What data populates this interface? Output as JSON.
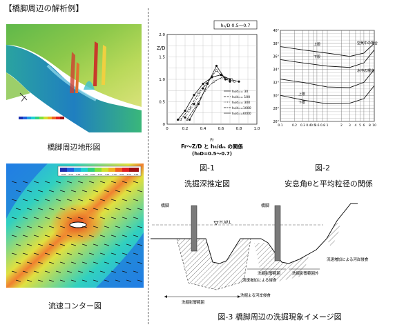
{
  "page_title": "【橋脚周辺の解析例】",
  "left": {
    "terrain_caption": "橋脚周辺地形図",
    "flow_caption": "流速コンター図",
    "flow_colorbar_ticks": [
      "0.00",
      "0.50",
      "1.00",
      "1.50",
      "2.00",
      "2.50",
      "3.00",
      "3.50",
      "4.00",
      "4.50",
      "5.00"
    ]
  },
  "fig1": {
    "label": "図-1",
    "caption": "洗掘深推定図",
    "legend_title": "h₀/D  0.5～0.7",
    "ylabel": "Z/D",
    "xlabel": "Fr",
    "chart_caption": "Fr～Z/D と h₀/dₘ の関係",
    "chart_caption2": "(h₀D=0.5～0.7)",
    "series_names": [
      "h₀/dₘ= 30",
      "h₀/dₘ= 100",
      "h₀/dₘ= 300",
      "h₀/dₘ=1000",
      "h₀/dₘ=6000"
    ]
  },
  "fig2": {
    "label": "図-2",
    "caption": "安息角θと平均粒径の関係",
    "annot_air": "空気中の場合",
    "annot_water": "水中の場合",
    "upper": "上限",
    "lower": "下限"
  },
  "fig3": {
    "caption": "図-3 橋脚周辺の洗掘現象イメージ図",
    "pier_label_left": "橋脚",
    "pier_label_right": "橋脚",
    "hwl": "H.W.L",
    "note_bank": "流速増加による河岸侵食",
    "note_zone1": "洗掘影響範囲",
    "note_zone2": "洗掘影響範囲外",
    "note_vel": "流速増加による侵食",
    "note_range": "洗掘影響範囲",
    "note_scour": "洗掘よる河岸侵食"
  },
  "chart_data": [
    {
      "type": "line",
      "title": "Fr～Z/D と h₀/dₘ の関係",
      "xlabel": "Fr",
      "ylabel": "Z/D",
      "xlim": [
        0,
        1.0
      ],
      "ylim": [
        0,
        2.0
      ],
      "x_ticks": [
        "0",
        "0.2",
        "0.4",
        "0.6",
        "0.8",
        "1.0"
      ],
      "y_ticks": [
        "0",
        "0.5",
        "1.0",
        "1.5",
        "2.0"
      ],
      "series": [
        {
          "name": "h₀/dₘ= 30",
          "x": [
            0.12,
            0.2,
            0.3,
            0.4,
            0.5,
            0.6,
            0.7,
            0.8
          ],
          "y": [
            0.1,
            0.3,
            0.65,
            0.9,
            1.05,
            1.1,
            1.0,
            0.95
          ]
        },
        {
          "name": "h₀/dₘ= 100",
          "x": [
            0.15,
            0.25,
            0.35,
            0.45,
            0.55,
            0.65,
            0.75
          ],
          "y": [
            0.1,
            0.35,
            0.7,
            0.95,
            1.2,
            1.0,
            0.95
          ]
        },
        {
          "name": "h₀/dₘ= 300",
          "x": [
            0.2,
            0.3,
            0.4,
            0.5,
            0.6,
            0.7
          ],
          "y": [
            0.15,
            0.45,
            0.8,
            1.05,
            1.1,
            0.95
          ]
        },
        {
          "name": "h₀/dₘ=1000",
          "x": [
            0.22,
            0.32,
            0.42,
            0.52,
            0.62,
            0.72
          ],
          "y": [
            0.1,
            0.4,
            0.75,
            0.95,
            1.05,
            1.0
          ]
        },
        {
          "name": "h₀/dₘ=6000",
          "x": [
            0.25,
            0.35,
            0.45,
            0.55,
            0.65
          ],
          "y": [
            0.1,
            0.45,
            0.9,
            1.3,
            1.0
          ]
        }
      ]
    },
    {
      "type": "line",
      "xlim": [
        0.1,
        10
      ],
      "ylim": [
        26,
        40
      ],
      "x_ticks": [
        "0.1",
        "0.2",
        "0.3",
        "0.4",
        "0.5",
        "0.6",
        "0.8",
        "1",
        "2",
        "3",
        "4",
        "5",
        "6",
        "8",
        "10"
      ],
      "y_ticks": [
        "26°",
        "28°",
        "30°",
        "32°",
        "34°",
        "36°",
        "38°",
        "40°"
      ],
      "series": [
        {
          "x": [
            0.1,
            0.3,
            1,
            3,
            6,
            10
          ],
          "y": [
            37.5,
            37.0,
            36.5,
            36.0,
            36.5,
            38.0
          ]
        },
        {
          "x": [
            0.1,
            0.3,
            1,
            3,
            6,
            10
          ],
          "y": [
            35.5,
            35.0,
            34.5,
            34.3,
            35.0,
            37.0
          ]
        },
        {
          "x": [
            0.1,
            0.3,
            1,
            3,
            6,
            10
          ],
          "y": [
            32.5,
            32.0,
            31.3,
            31.2,
            32.0,
            34.0
          ]
        },
        {
          "x": [
            0.1,
            0.3,
            1,
            3,
            6,
            10
          ],
          "y": [
            30.0,
            29.3,
            28.7,
            28.8,
            29.5,
            31.5
          ]
        }
      ]
    }
  ]
}
